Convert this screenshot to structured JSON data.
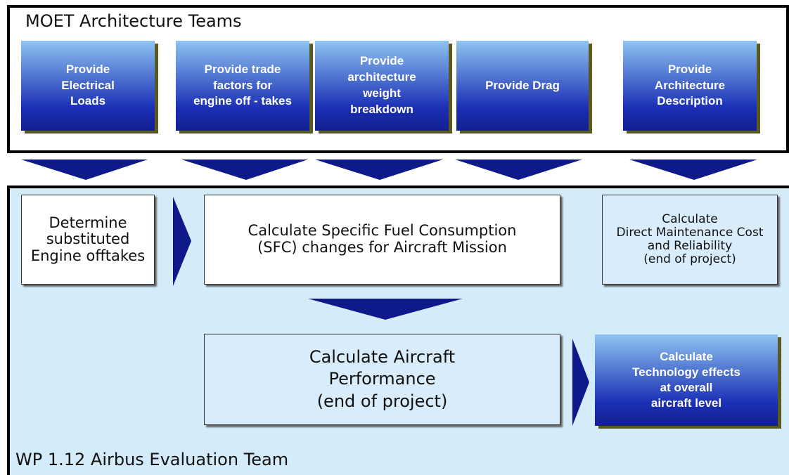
{
  "header": {
    "title": "MOET Architecture Teams"
  },
  "inputs": [
    {
      "lines": [
        "Provide",
        "Electrical",
        "Loads"
      ]
    },
    {
      "lines": [
        "Provide trade",
        "factors for",
        "engine off - takes"
      ]
    },
    {
      "lines": [
        "Provide",
        "architecture",
        "weight",
        "breakdown"
      ]
    },
    {
      "lines": [
        "Provide Drag"
      ]
    },
    {
      "lines": [
        "Provide",
        "Architecture",
        "Description"
      ]
    }
  ],
  "steps": [
    {
      "lines": [
        "Determine",
        "substituted",
        "Engine offtakes"
      ]
    },
    {
      "lines": [
        "Calculate Specific Fuel Consumption",
        "(SFC) changes for Aircraft Mission"
      ]
    },
    {
      "lines": [
        "Calculate",
        "Direct Maintenance Cost",
        "and Reliability",
        "(end of project)"
      ]
    },
    {
      "lines": [
        "Calculate Aircraft",
        "Performance",
        "(end of project)"
      ]
    },
    {
      "lines": [
        "Calculate",
        "Technology effects",
        "at overall",
        "aircraft level"
      ]
    }
  ],
  "footer": {
    "title": "WP 1.12 Airbus Evaluation Team"
  }
}
